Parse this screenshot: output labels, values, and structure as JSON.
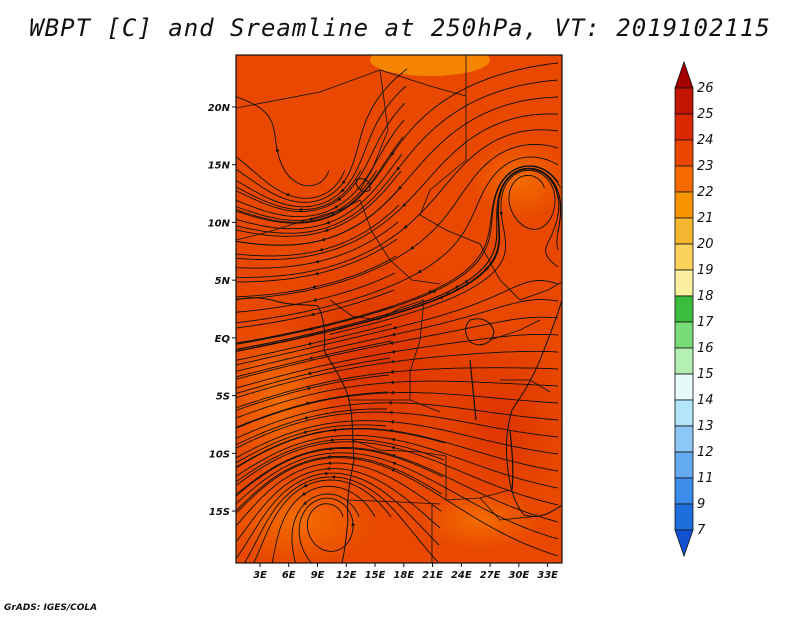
{
  "chart_data": {
    "type": "heatmap",
    "title": "WBPT [C] and Sreamline at 250hPa, VT: 2019102115",
    "variable": "WBPT [C]",
    "level": "250hPa",
    "valid_time": "2019102115",
    "x_ticks": [
      "3E",
      "6E",
      "9E",
      "12E",
      "15E",
      "18E",
      "21E",
      "24E",
      "27E",
      "30E",
      "33E"
    ],
    "x_tick_values": [
      3,
      6,
      9,
      12,
      15,
      18,
      21,
      24,
      27,
      30,
      33
    ],
    "y_ticks": [
      "20N",
      "15N",
      "10N",
      "5N",
      "EQ",
      "5S",
      "10S",
      "15S"
    ],
    "y_tick_values": [
      20,
      15,
      10,
      5,
      0,
      -5,
      -10,
      -15
    ],
    "xlim": [
      0.5,
      34.5
    ],
    "ylim": [
      -19.5,
      24.5
    ],
    "colorbar": {
      "labels": [
        "26",
        "25",
        "24",
        "23",
        "22",
        "21",
        "20",
        "19",
        "18",
        "17",
        "16",
        "15",
        "14",
        "13",
        "12",
        "11",
        "9",
        "7"
      ],
      "colors": [
        "#a50000",
        "#c21400",
        "#dc2800",
        "#eb4600",
        "#f56a00",
        "#f79400",
        "#f6b632",
        "#fbd35c",
        "#faf0a0",
        "#3cbc3c",
        "#78dc78",
        "#b4f0b4",
        "#e6fafa",
        "#b4e6fa",
        "#8cc8f5",
        "#64aaf0",
        "#3c8ceb",
        "#1e6edc",
        "#1450d2"
      ]
    },
    "field_description_colors": {
      "dominant": "#e84800",
      "warm_core": "#e03a00",
      "cooler_patch": "#f26a00"
    },
    "streamline_features": [
      {
        "kind": "anticyclone",
        "lon": 10,
        "lat": -15.5
      },
      {
        "kind": "cyclone",
        "lon": 8.5,
        "lat": 14.5
      },
      {
        "kind": "anticyclone",
        "lon": 31,
        "lat": 13
      }
    ]
  },
  "footer": "GrADS: IGES/COLA"
}
